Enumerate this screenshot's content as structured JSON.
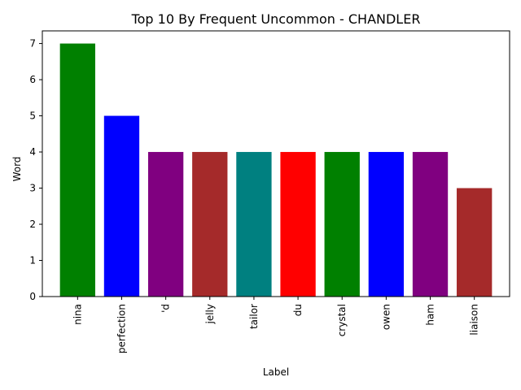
{
  "chart_data": {
    "type": "bar",
    "title": "Top 10 By Frequent Uncommon - CHANDLER",
    "xlabel": "Label",
    "ylabel": "Word",
    "categories": [
      "nina",
      "perfection",
      "'d",
      "jelly",
      "tailor",
      "du",
      "crystal",
      "owen",
      "ham",
      "liaison"
    ],
    "values": [
      7,
      5,
      4,
      4,
      4,
      4,
      4,
      4,
      4,
      3
    ],
    "colors": [
      "#008000",
      "#0000ff",
      "#800080",
      "#a52a2a",
      "#008080",
      "#ff0000",
      "#008000",
      "#0000ff",
      "#800080",
      "#a52a2a"
    ],
    "ylim": [
      0,
      7.35
    ],
    "yticks": [
      0,
      1,
      2,
      3,
      4,
      5,
      6,
      7
    ],
    "grid": false,
    "legend": "none"
  }
}
